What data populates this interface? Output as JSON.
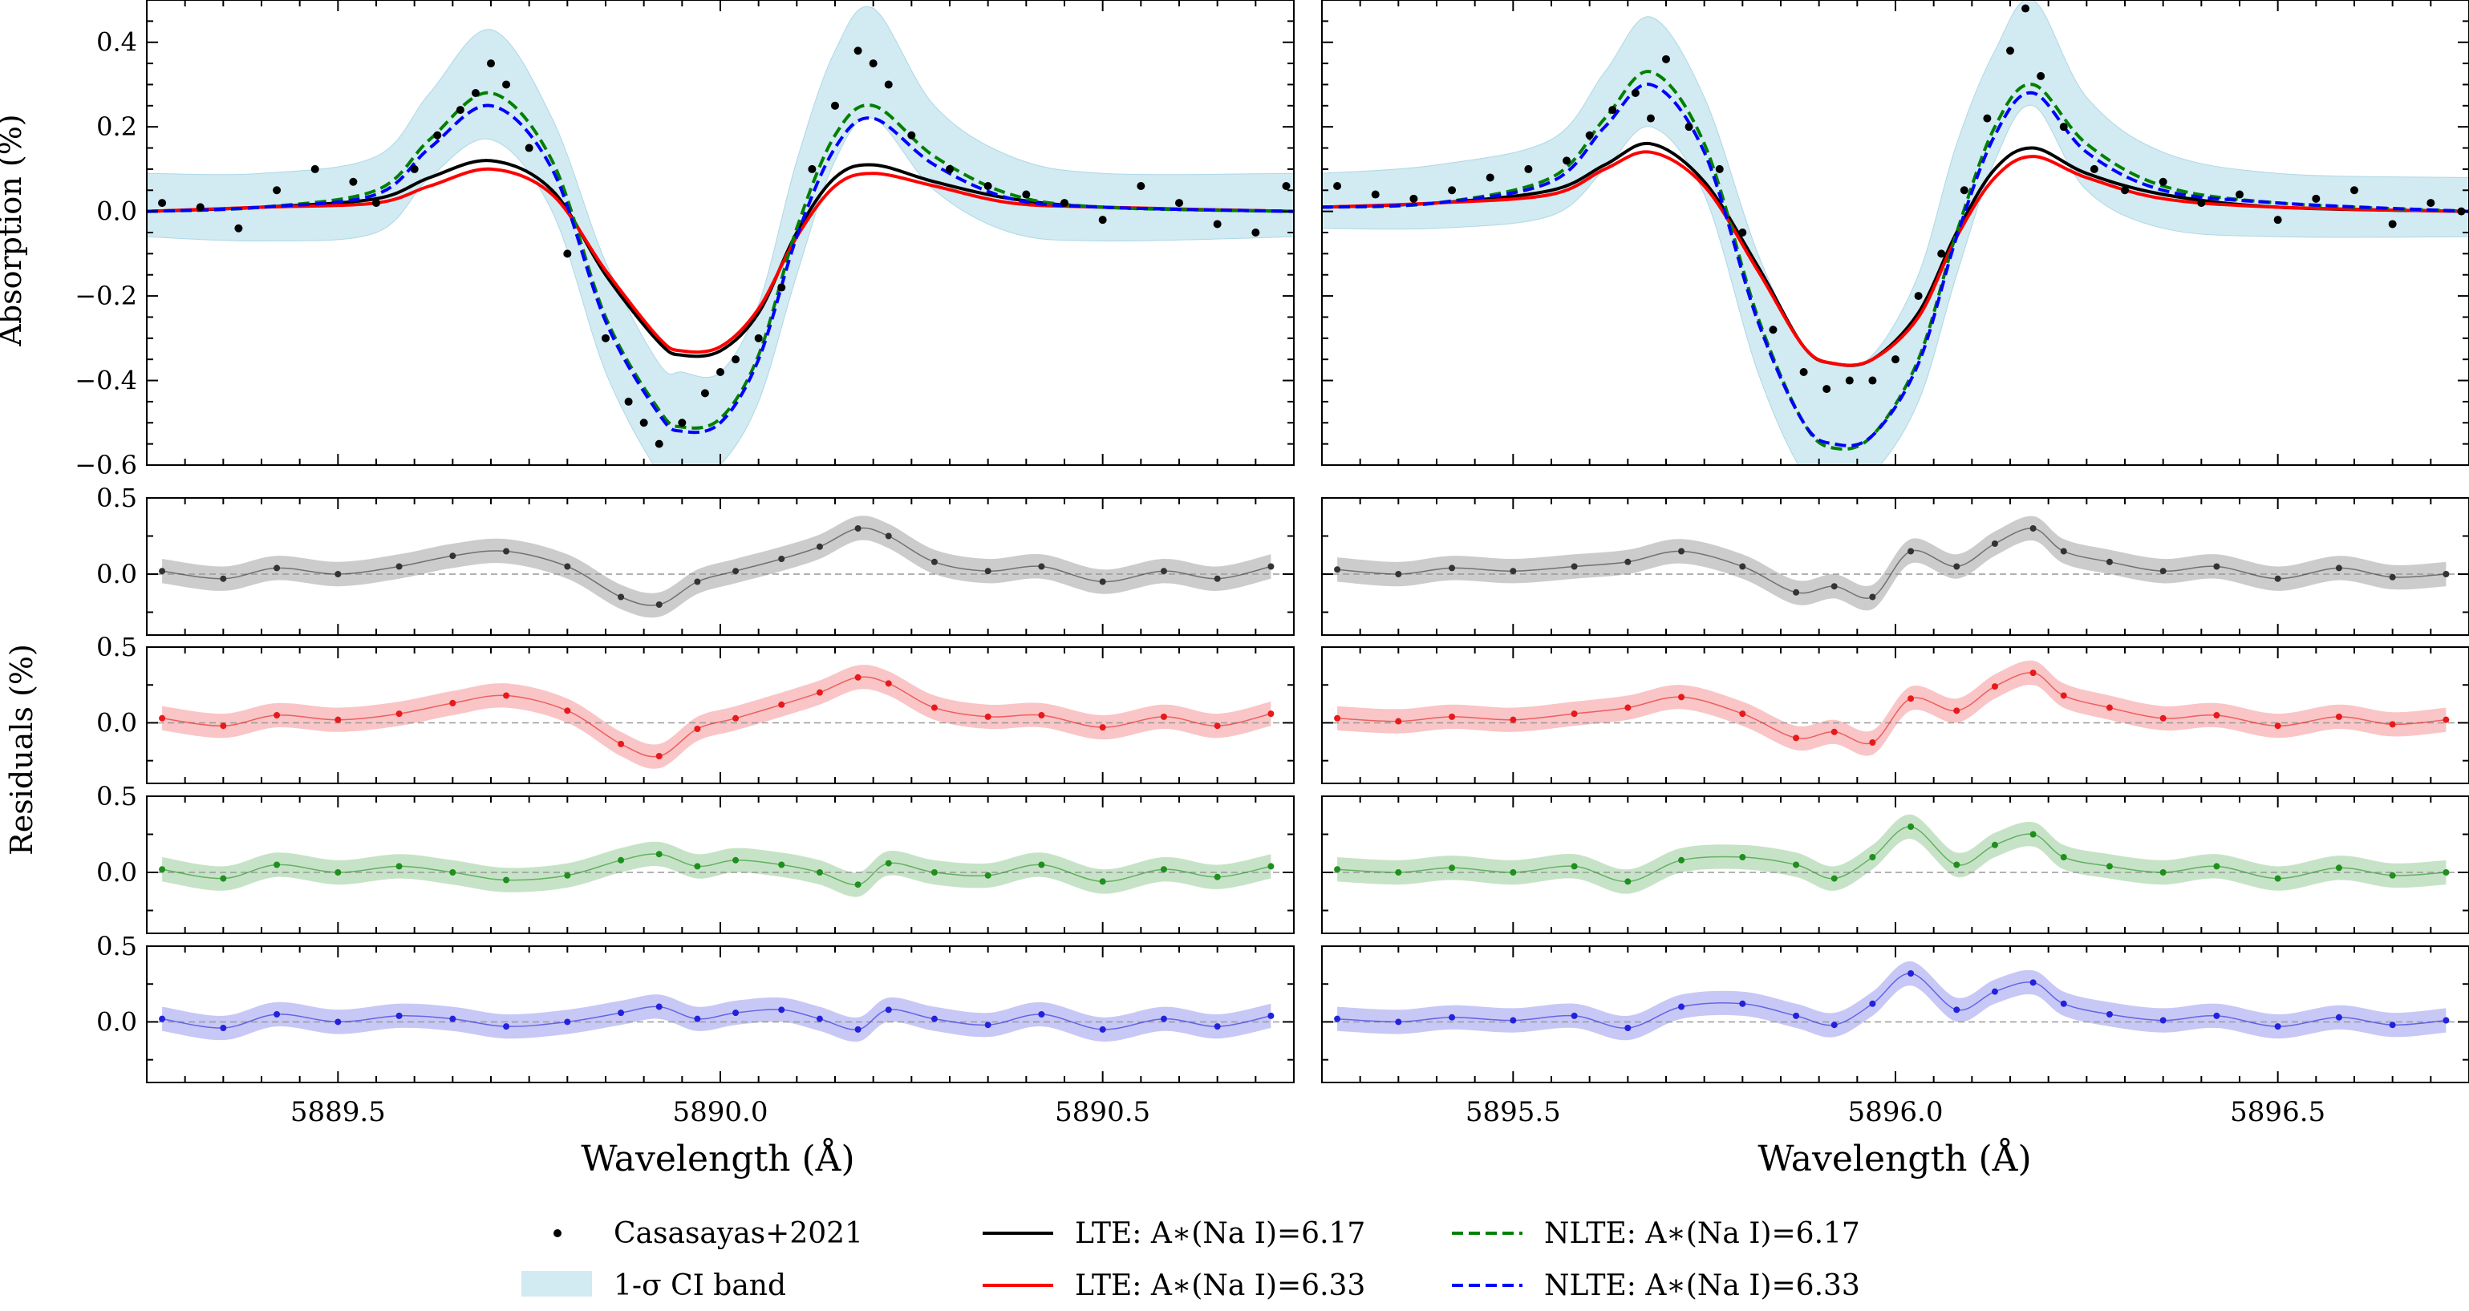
{
  "figure": {
    "ylabel_top": "Absorption (%)",
    "ylabel_residuals": "Residuals (%)",
    "xlabel": "Wavelength (Å)"
  },
  "legend": {
    "placement": "bottom-center",
    "entries": [
      {
        "label": "Casasayas+2021",
        "style": "dots",
        "color": "#000000"
      },
      {
        "label": "1-σ CI band",
        "style": "band",
        "color": "#add8e6"
      },
      {
        "label": "LTE: A∗(Na I)=6.17",
        "style": "solid",
        "color": "#000000"
      },
      {
        "label": "LTE: A∗(Na I)=6.33",
        "style": "solid",
        "color": "#ff0000"
      },
      {
        "label": "NLTE: A∗(Na I)=6.17",
        "style": "dashed",
        "color": "#008000"
      },
      {
        "label": "NLTE: A∗(Na I)=6.33",
        "style": "dashed",
        "color": "#0000ff"
      }
    ]
  },
  "colors": {
    "observed": "#000000",
    "ci_band": "#add8e6",
    "lte_617": "#000000",
    "lte_633": "#ff0000",
    "nlte_617": "#008000",
    "nlte_633": "#0000ff",
    "residual_lte_617": "#333333",
    "residual_lte_633": "#e8191b",
    "residual_nlte_617": "#1f8f1f",
    "residual_nlte_633": "#2222dd"
  },
  "chart_data": [
    {
      "type": "line",
      "panel": "D2 absorption",
      "xlim": [
        5889.25,
        5890.75
      ],
      "ylim": [
        -0.6,
        0.5
      ],
      "xticks": [
        "5889.5",
        "5890.0",
        "5890.5"
      ],
      "xtick_values": [
        5889.5,
        5890.0,
        5890.5
      ],
      "yticks": [
        "0.4",
        "0.2",
        "0.0",
        "−0.2",
        "−0.4",
        "−0.6"
      ],
      "ytick_values": [
        0.4,
        0.2,
        0.0,
        -0.2,
        -0.4,
        -0.6
      ],
      "series": [
        {
          "name": "LTE: A∗(Na I)=6.17",
          "key": "lte_617",
          "x": [
            5889.25,
            5889.4,
            5889.55,
            5889.62,
            5889.7,
            5889.78,
            5889.85,
            5889.92,
            5889.95,
            5890.0,
            5890.05,
            5890.1,
            5890.15,
            5890.2,
            5890.28,
            5890.38,
            5890.5,
            5890.75
          ],
          "y": [
            0.0,
            0.01,
            0.03,
            0.08,
            0.12,
            0.05,
            -0.15,
            -0.31,
            -0.34,
            -0.33,
            -0.24,
            -0.05,
            0.08,
            0.11,
            0.07,
            0.03,
            0.01,
            0.0
          ]
        },
        {
          "name": "LTE: A∗(Na I)=6.33",
          "key": "lte_633",
          "x": [
            5889.25,
            5889.4,
            5889.55,
            5889.62,
            5889.7,
            5889.78,
            5889.85,
            5889.92,
            5889.95,
            5890.0,
            5890.05,
            5890.1,
            5890.15,
            5890.2,
            5890.28,
            5890.38,
            5890.5,
            5890.75
          ],
          "y": [
            0.0,
            0.01,
            0.02,
            0.06,
            0.1,
            0.04,
            -0.14,
            -0.3,
            -0.33,
            -0.32,
            -0.23,
            -0.06,
            0.06,
            0.09,
            0.06,
            0.02,
            0.01,
            0.0
          ]
        },
        {
          "name": "NLTE: A∗(Na I)=6.17",
          "key": "nlte_617",
          "x": [
            5889.25,
            5889.4,
            5889.55,
            5889.62,
            5889.7,
            5889.78,
            5889.85,
            5889.92,
            5889.95,
            5890.0,
            5890.05,
            5890.1,
            5890.15,
            5890.2,
            5890.28,
            5890.38,
            5890.5,
            5890.75
          ],
          "y": [
            0.0,
            0.01,
            0.05,
            0.17,
            0.28,
            0.12,
            -0.25,
            -0.47,
            -0.51,
            -0.49,
            -0.34,
            -0.04,
            0.18,
            0.25,
            0.13,
            0.04,
            0.01,
            0.0
          ]
        },
        {
          "name": "NLTE: A∗(Na I)=6.33",
          "key": "nlte_633",
          "x": [
            5889.25,
            5889.4,
            5889.55,
            5889.62,
            5889.7,
            5889.78,
            5889.85,
            5889.92,
            5889.95,
            5890.0,
            5890.05,
            5890.1,
            5890.15,
            5890.2,
            5890.28,
            5890.38,
            5890.5,
            5890.75
          ],
          "y": [
            0.0,
            0.01,
            0.04,
            0.15,
            0.25,
            0.1,
            -0.26,
            -0.48,
            -0.52,
            -0.5,
            -0.35,
            -0.06,
            0.15,
            0.22,
            0.11,
            0.03,
            0.01,
            0.0
          ]
        },
        {
          "name": "Casasayas+2021",
          "key": "observed",
          "x": [
            5889.27,
            5889.32,
            5889.37,
            5889.42,
            5889.47,
            5889.52,
            5889.55,
            5889.6,
            5889.63,
            5889.66,
            5889.68,
            5889.7,
            5889.72,
            5889.75,
            5889.8,
            5889.85,
            5889.88,
            5889.9,
            5889.92,
            5889.95,
            5889.98,
            5890.0,
            5890.02,
            5890.05,
            5890.08,
            5890.12,
            5890.15,
            5890.18,
            5890.2,
            5890.22,
            5890.25,
            5890.3,
            5890.35,
            5890.4,
            5890.45,
            5890.5,
            5890.55,
            5890.6,
            5890.65,
            5890.7,
            5890.74
          ],
          "y": [
            0.02,
            0.01,
            -0.04,
            0.05,
            0.1,
            0.07,
            0.02,
            0.1,
            0.18,
            0.24,
            0.28,
            0.35,
            0.3,
            0.15,
            -0.1,
            -0.3,
            -0.45,
            -0.5,
            -0.55,
            -0.5,
            -0.43,
            -0.38,
            -0.35,
            -0.3,
            -0.18,
            0.1,
            0.25,
            0.38,
            0.35,
            0.3,
            0.18,
            0.1,
            0.06,
            0.04,
            0.02,
            -0.02,
            0.06,
            0.02,
            -0.03,
            -0.05,
            0.06
          ]
        }
      ],
      "ci_band": {
        "x": [
          5889.25,
          5889.4,
          5889.55,
          5889.62,
          5889.7,
          5889.78,
          5889.85,
          5889.92,
          5889.95,
          5890.0,
          5890.05,
          5890.1,
          5890.15,
          5890.2,
          5890.28,
          5890.38,
          5890.5,
          5890.75
        ],
        "lower": [
          -0.06,
          -0.07,
          -0.05,
          0.08,
          0.17,
          0.0,
          -0.38,
          -0.62,
          -0.65,
          -0.6,
          -0.45,
          -0.15,
          0.12,
          0.22,
          0.05,
          -0.05,
          -0.07,
          -0.06
        ],
        "upper": [
          0.09,
          0.09,
          0.13,
          0.28,
          0.43,
          0.22,
          -0.12,
          -0.36,
          -0.38,
          -0.38,
          -0.22,
          0.12,
          0.38,
          0.48,
          0.25,
          0.13,
          0.09,
          0.09
        ]
      }
    },
    {
      "type": "line",
      "panel": "D1 absorption",
      "xlim": [
        5895.25,
        5896.75
      ],
      "ylim": [
        -0.6,
        0.5
      ],
      "xticks": [
        "5895.5",
        "5896.0",
        "5896.5"
      ],
      "xtick_values": [
        5895.5,
        5896.0,
        5896.5
      ],
      "series": [
        {
          "name": "LTE: A∗(Na I)=6.17",
          "key": "lte_617",
          "x": [
            5895.25,
            5895.4,
            5895.55,
            5895.62,
            5895.68,
            5895.75,
            5895.82,
            5895.88,
            5895.92,
            5895.97,
            5896.03,
            5896.08,
            5896.13,
            5896.18,
            5896.25,
            5896.35,
            5896.5,
            5896.75
          ],
          "y": [
            0.01,
            0.02,
            0.05,
            0.11,
            0.16,
            0.07,
            -0.13,
            -0.32,
            -0.36,
            -0.35,
            -0.24,
            -0.05,
            0.1,
            0.15,
            0.09,
            0.04,
            0.01,
            0.0
          ]
        },
        {
          "name": "LTE: A∗(Na I)=6.33",
          "key": "lte_633",
          "x": [
            5895.25,
            5895.4,
            5895.55,
            5895.62,
            5895.68,
            5895.75,
            5895.82,
            5895.88,
            5895.92,
            5895.97,
            5896.03,
            5896.08,
            5896.13,
            5896.18,
            5896.25,
            5896.35,
            5896.5,
            5896.75
          ],
          "y": [
            0.01,
            0.02,
            0.04,
            0.1,
            0.14,
            0.06,
            -0.14,
            -0.32,
            -0.36,
            -0.35,
            -0.25,
            -0.06,
            0.08,
            0.13,
            0.08,
            0.03,
            0.01,
            0.0
          ]
        },
        {
          "name": "NLTE: A∗(Na I)=6.17",
          "key": "nlte_617",
          "x": [
            5895.25,
            5895.4,
            5895.55,
            5895.62,
            5895.68,
            5895.75,
            5895.82,
            5895.88,
            5895.92,
            5895.97,
            5896.03,
            5896.08,
            5896.13,
            5896.18,
            5896.25,
            5896.35,
            5896.5,
            5896.75
          ],
          "y": [
            0.01,
            0.02,
            0.08,
            0.22,
            0.33,
            0.16,
            -0.25,
            -0.5,
            -0.56,
            -0.53,
            -0.35,
            -0.05,
            0.2,
            0.3,
            0.16,
            0.06,
            0.02,
            0.0
          ]
        },
        {
          "name": "NLTE: A∗(Na I)=6.33",
          "key": "nlte_633",
          "x": [
            5895.25,
            5895.4,
            5895.55,
            5895.62,
            5895.68,
            5895.75,
            5895.82,
            5895.88,
            5895.92,
            5895.97,
            5896.03,
            5896.08,
            5896.13,
            5896.18,
            5896.25,
            5896.35,
            5896.5,
            5896.75
          ],
          "y": [
            0.01,
            0.02,
            0.07,
            0.2,
            0.3,
            0.14,
            -0.26,
            -0.5,
            -0.55,
            -0.53,
            -0.36,
            -0.06,
            0.18,
            0.28,
            0.14,
            0.05,
            0.02,
            0.0
          ]
        },
        {
          "name": "Casasayas+2021",
          "key": "observed",
          "x": [
            5895.27,
            5895.32,
            5895.37,
            5895.42,
            5895.47,
            5895.52,
            5895.57,
            5895.6,
            5895.63,
            5895.66,
            5895.68,
            5895.7,
            5895.73,
            5895.77,
            5895.8,
            5895.84,
            5895.88,
            5895.91,
            5895.94,
            5895.97,
            5896.0,
            5896.03,
            5896.06,
            5896.09,
            5896.12,
            5896.15,
            5896.17,
            5896.19,
            5896.22,
            5896.26,
            5896.3,
            5896.35,
            5896.4,
            5896.45,
            5896.5,
            5896.55,
            5896.6,
            5896.65,
            5896.7,
            5896.74
          ],
          "y": [
            0.06,
            0.04,
            0.03,
            0.05,
            0.08,
            0.1,
            0.12,
            0.18,
            0.24,
            0.28,
            0.22,
            0.36,
            0.2,
            0.1,
            -0.05,
            -0.28,
            -0.38,
            -0.42,
            -0.4,
            -0.4,
            -0.35,
            -0.2,
            -0.1,
            0.05,
            0.22,
            0.38,
            0.48,
            0.32,
            0.2,
            0.1,
            0.05,
            0.07,
            0.02,
            0.04,
            -0.02,
            0.03,
            0.05,
            -0.03,
            0.02,
            0.0
          ]
        }
      ],
      "ci_band": {
        "x": [
          5895.25,
          5895.4,
          5895.55,
          5895.62,
          5895.68,
          5895.75,
          5895.82,
          5895.88,
          5895.92,
          5895.97,
          5896.03,
          5896.08,
          5896.13,
          5896.18,
          5896.25,
          5896.35,
          5896.5,
          5896.75
        ],
        "lower": [
          -0.04,
          -0.04,
          -0.01,
          0.1,
          0.2,
          0.04,
          -0.38,
          -0.62,
          -0.65,
          -0.62,
          -0.45,
          -0.15,
          0.12,
          0.25,
          0.05,
          -0.04,
          -0.06,
          -0.06
        ],
        "upper": [
          0.09,
          0.11,
          0.17,
          0.33,
          0.46,
          0.27,
          -0.1,
          -0.32,
          -0.36,
          -0.34,
          -0.15,
          0.16,
          0.38,
          0.5,
          0.27,
          0.14,
          0.09,
          0.08
        ]
      }
    },
    {
      "type": "scatter",
      "panel": "residuals",
      "ylim": [
        -0.4,
        0.5
      ],
      "yticks": [
        "0.5",
        "0.0"
      ],
      "ytick_values": [
        0.5,
        0.0
      ],
      "x_left": [
        5889.27,
        5889.35,
        5889.42,
        5889.5,
        5889.58,
        5889.65,
        5889.72,
        5889.8,
        5889.87,
        5889.92,
        5889.97,
        5890.02,
        5890.08,
        5890.13,
        5890.18,
        5890.22,
        5890.28,
        5890.35,
        5890.42,
        5890.5,
        5890.58,
        5890.65,
        5890.72
      ],
      "x_right": [
        5895.27,
        5895.35,
        5895.42,
        5895.5,
        5895.58,
        5895.65,
        5895.72,
        5895.8,
        5895.87,
        5895.92,
        5895.97,
        5896.02,
        5896.08,
        5896.13,
        5896.18,
        5896.22,
        5896.28,
        5896.35,
        5896.42,
        5896.5,
        5896.58,
        5896.65,
        5896.72
      ],
      "rows": [
        {
          "name": "LTE: A∗(Na I)=6.17",
          "key": "residual_lte_617",
          "left": [
            0.02,
            -0.03,
            0.04,
            0.0,
            0.05,
            0.12,
            0.15,
            0.05,
            -0.15,
            -0.2,
            -0.05,
            0.02,
            0.1,
            0.18,
            0.3,
            0.25,
            0.08,
            0.02,
            0.05,
            -0.05,
            0.02,
            -0.03,
            0.05
          ],
          "right": [
            0.03,
            0.0,
            0.04,
            0.02,
            0.05,
            0.08,
            0.15,
            0.05,
            -0.12,
            -0.08,
            -0.15,
            0.15,
            0.05,
            0.2,
            0.3,
            0.15,
            0.08,
            0.02,
            0.05,
            -0.03,
            0.04,
            -0.02,
            0.0
          ],
          "band_width": 0.08
        },
        {
          "name": "LTE: A∗(Na I)=6.33",
          "key": "residual_lte_633",
          "left": [
            0.03,
            -0.02,
            0.05,
            0.02,
            0.06,
            0.13,
            0.18,
            0.08,
            -0.14,
            -0.22,
            -0.04,
            0.03,
            0.12,
            0.2,
            0.3,
            0.26,
            0.1,
            0.04,
            0.05,
            -0.03,
            0.04,
            -0.02,
            0.06
          ],
          "right": [
            0.03,
            0.01,
            0.04,
            0.02,
            0.06,
            0.1,
            0.17,
            0.06,
            -0.1,
            -0.06,
            -0.13,
            0.16,
            0.08,
            0.24,
            0.33,
            0.18,
            0.1,
            0.03,
            0.05,
            -0.02,
            0.04,
            -0.01,
            0.02
          ],
          "band_width": 0.08
        },
        {
          "name": "NLTE: A∗(Na I)=6.17",
          "key": "residual_nlte_617",
          "left": [
            0.02,
            -0.04,
            0.05,
            0.0,
            0.04,
            0.0,
            -0.05,
            -0.02,
            0.08,
            0.12,
            0.04,
            0.08,
            0.05,
            0.0,
            -0.08,
            0.06,
            0.0,
            -0.02,
            0.05,
            -0.06,
            0.02,
            -0.03,
            0.04
          ],
          "right": [
            0.02,
            0.0,
            0.03,
            0.0,
            0.04,
            -0.06,
            0.08,
            0.1,
            0.05,
            -0.04,
            0.1,
            0.3,
            0.05,
            0.18,
            0.25,
            0.1,
            0.04,
            0.0,
            0.04,
            -0.04,
            0.03,
            -0.02,
            0.0
          ],
          "band_width": 0.08
        },
        {
          "name": "NLTE: A∗(Na I)=6.33",
          "key": "residual_nlte_633",
          "left": [
            0.02,
            -0.04,
            0.05,
            0.0,
            0.04,
            0.02,
            -0.03,
            0.0,
            0.06,
            0.1,
            0.02,
            0.06,
            0.08,
            0.02,
            -0.05,
            0.08,
            0.02,
            -0.02,
            0.05,
            -0.05,
            0.02,
            -0.03,
            0.04
          ],
          "right": [
            0.02,
            0.0,
            0.03,
            0.01,
            0.04,
            -0.04,
            0.1,
            0.12,
            0.04,
            -0.02,
            0.12,
            0.32,
            0.08,
            0.2,
            0.26,
            0.12,
            0.05,
            0.01,
            0.04,
            -0.03,
            0.03,
            -0.02,
            0.01
          ],
          "band_width": 0.08
        }
      ]
    }
  ]
}
